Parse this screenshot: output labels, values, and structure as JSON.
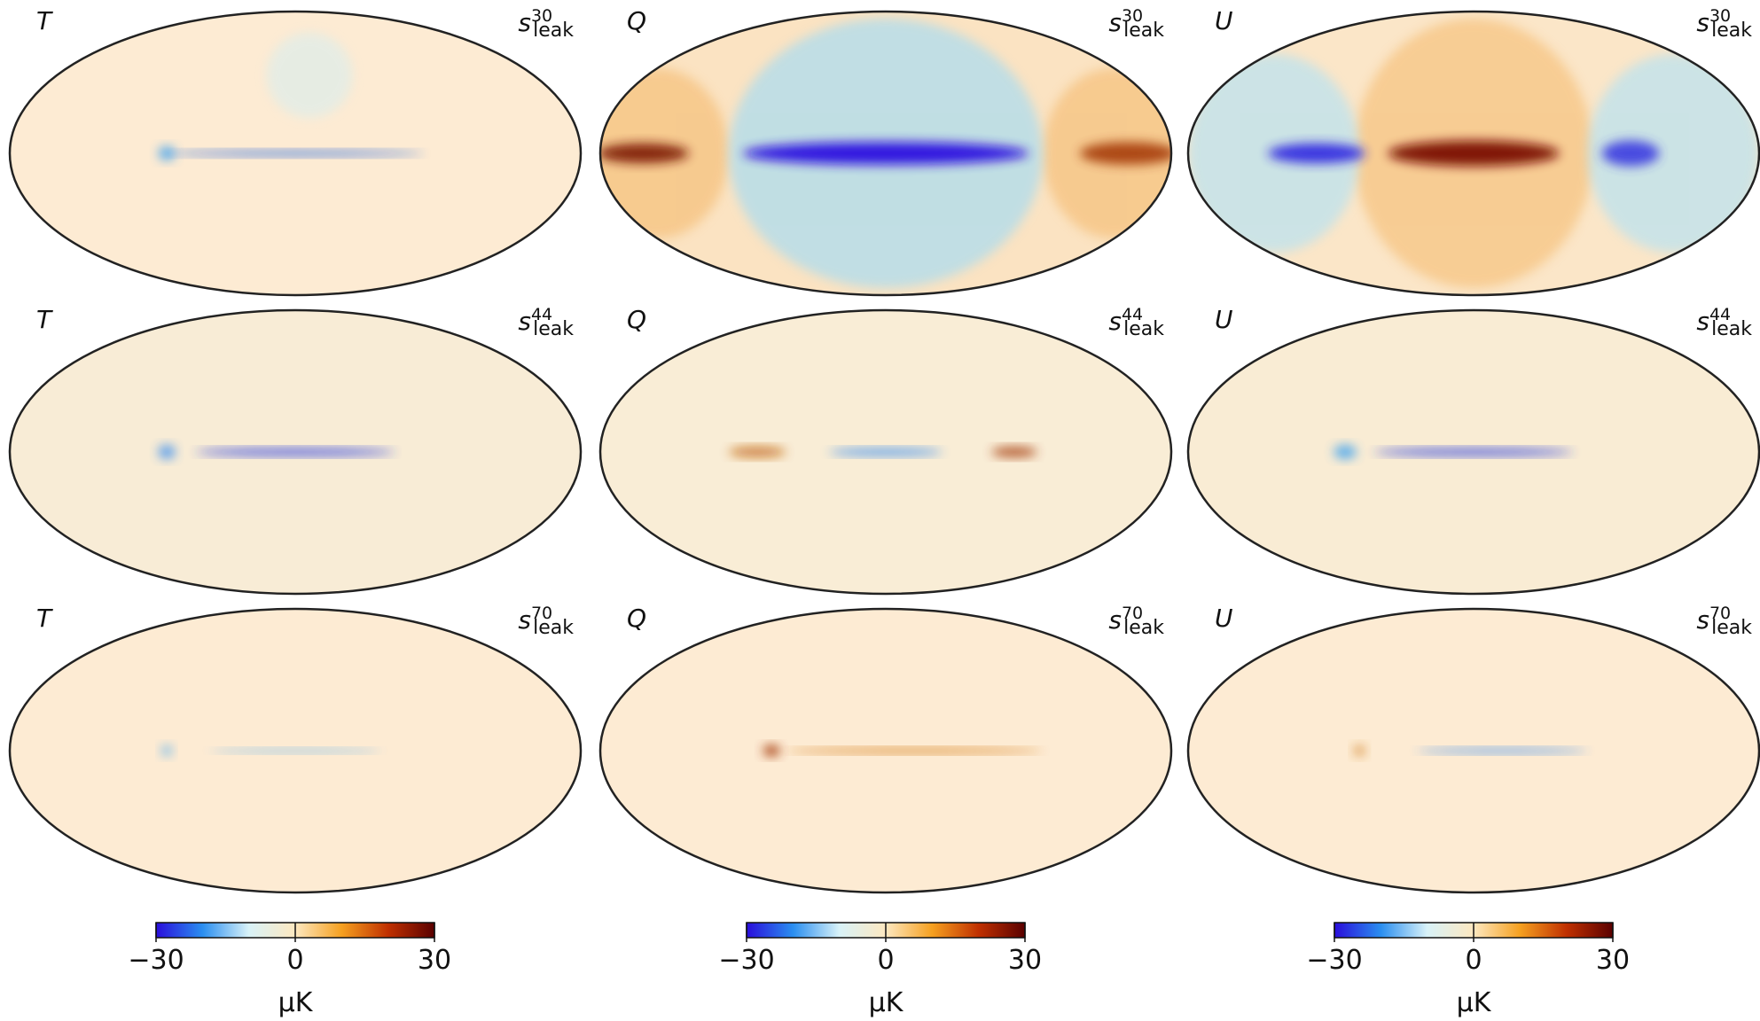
{
  "panels": [
    {
      "component": "T",
      "symbol": "s",
      "frequency": "30",
      "subscript": "leak"
    },
    {
      "component": "Q",
      "symbol": "s",
      "frequency": "30",
      "subscript": "leak"
    },
    {
      "component": "U",
      "symbol": "s",
      "frequency": "30",
      "subscript": "leak"
    },
    {
      "component": "T",
      "symbol": "s",
      "frequency": "44",
      "subscript": "leak"
    },
    {
      "component": "Q",
      "symbol": "s",
      "frequency": "44",
      "subscript": "leak"
    },
    {
      "component": "U",
      "symbol": "s",
      "frequency": "44",
      "subscript": "leak"
    },
    {
      "component": "T",
      "symbol": "s",
      "frequency": "70",
      "subscript": "leak"
    },
    {
      "component": "Q",
      "symbol": "s",
      "frequency": "70",
      "subscript": "leak"
    },
    {
      "component": "U",
      "symbol": "s",
      "frequency": "70",
      "subscript": "leak"
    }
  ],
  "colorbars": [
    {
      "lim": [
        -30,
        30
      ],
      "ticks": [
        {
          "value": -30,
          "label": "−30"
        },
        0,
        30
      ],
      "label": "μK",
      "colors": [
        "#2a0ddb",
        "#2a8ef0",
        "#d8f2f8",
        "#fde8c0",
        "#f5a020",
        "#c03000",
        "#5a0000"
      ]
    },
    {
      "lim": [
        -30,
        30
      ],
      "ticks": [
        {
          "value": -30,
          "label": "−30"
        },
        0,
        30
      ],
      "label": "μK",
      "colors": [
        "#2a0ddb",
        "#2a8ef0",
        "#d8f2f8",
        "#fde8c0",
        "#f5a020",
        "#c03000",
        "#5a0000"
      ]
    },
    {
      "lim": [
        -30,
        30
      ],
      "ticks": [
        {
          "value": -30,
          "label": "−30"
        },
        0,
        30
      ],
      "label": "μK",
      "colors": [
        "#2a0ddb",
        "#2a8ef0",
        "#d8f2f8",
        "#fde8c0",
        "#f5a020",
        "#c03000",
        "#5a0000"
      ]
    }
  ]
}
